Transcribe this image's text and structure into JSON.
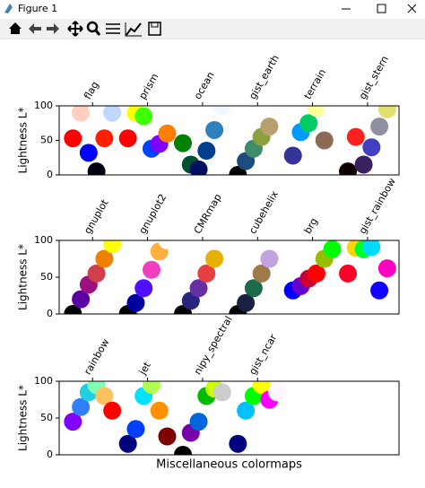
{
  "window": {
    "title": "Figure 1"
  },
  "chart_data": [
    {
      "type": "scatter",
      "ylabel": "Lightness L*",
      "ylim": [
        0,
        100
      ],
      "yticks": [
        0,
        50,
        100
      ],
      "xlim": [
        -0.35,
        8.3
      ],
      "xticks": [
        {
          "value": 0.5,
          "label": "flag"
        },
        {
          "value": 1.9,
          "label": "prism"
        },
        {
          "value": 3.3,
          "label": "ocean"
        },
        {
          "value": 4.7,
          "label": "gist_earth"
        },
        {
          "value": 6.1,
          "label": "terrain"
        },
        {
          "value": 7.5,
          "label": "gist_stern"
        }
      ],
      "series": [
        {
          "x": [
            0,
            0.2,
            0.4,
            0.6,
            0.8,
            1.0
          ],
          "values": [
            53,
            90,
            32,
            5,
            53,
            90
          ],
          "colors": [
            "#ff0000",
            "#ffd0c0",
            "#0000ff",
            "#000010",
            "#ff2000",
            "#c0d8ff"
          ]
        },
        {
          "x": [
            1.4,
            1.6,
            1.8,
            2.0,
            2.2,
            2.4
          ],
          "values": [
            53,
            90,
            85,
            38,
            45,
            60
          ],
          "colors": [
            "#ff0000",
            "#ffff00",
            "#40ff00",
            "#0040ff",
            "#8000ff",
            "#ff8000"
          ]
        },
        {
          "x": [
            2.8,
            3.0,
            3.2,
            3.4,
            3.6,
            3.8
          ],
          "values": [
            46,
            15,
            8,
            35,
            65,
            100
          ],
          "colors": [
            "#007f00",
            "#004f2f",
            "#00105f",
            "#00408f",
            "#3080bf",
            "#f0f8ff"
          ]
        },
        {
          "x": [
            4.2,
            4.4,
            4.6,
            4.8,
            5.0,
            5.2
          ],
          "values": [
            0,
            20,
            38,
            55,
            70,
            100
          ],
          "colors": [
            "#000000",
            "#1c4d7d",
            "#3e8c6a",
            "#8aa23e",
            "#b79f6e",
            "#fdfbfb"
          ]
        },
        {
          "x": [
            5.6,
            5.8,
            6.0,
            6.2,
            6.4,
            6.6
          ],
          "values": [
            28,
            62,
            75,
            97,
            50,
            100
          ],
          "colors": [
            "#333399",
            "#0099ff",
            "#00cc66",
            "#ffff99",
            "#8c6a55",
            "#ffffff"
          ]
        },
        {
          "x": [
            7.0,
            7.2,
            7.4,
            7.6,
            7.8,
            8.0
          ],
          "values": [
            5,
            55,
            15,
            40,
            70,
            95
          ],
          "colors": [
            "#100000",
            "#ff2020",
            "#3a2060",
            "#4040c0",
            "#9090a0",
            "#e0e070"
          ]
        }
      ]
    },
    {
      "type": "scatter",
      "ylabel": "Lightness L*",
      "ylim": [
        0,
        100
      ],
      "yticks": [
        0,
        50,
        100
      ],
      "xlim": [
        -0.35,
        8.3
      ],
      "xticks": [
        {
          "value": 0.5,
          "label": "gnuplot"
        },
        {
          "value": 1.9,
          "label": "gnuplot2"
        },
        {
          "value": 3.3,
          "label": "CMRmap"
        },
        {
          "value": 4.7,
          "label": "cubehelix"
        },
        {
          "value": 6.1,
          "label": "brg"
        },
        {
          "value": 7.5,
          "label": "gist_rainbow"
        }
      ],
      "series": [
        {
          "x": [
            0,
            0.2,
            0.4,
            0.6,
            0.8,
            1.0
          ],
          "values": [
            0,
            20,
            40,
            55,
            75,
            95
          ],
          "colors": [
            "#000000",
            "#5a00a0",
            "#9c1080",
            "#d0404a",
            "#f08000",
            "#ffff00"
          ]
        },
        {
          "x": [
            1.4,
            1.6,
            1.8,
            2.0,
            2.2,
            2.4
          ],
          "values": [
            0,
            15,
            35,
            60,
            85,
            100
          ],
          "colors": [
            "#000000",
            "#0000a0",
            "#5010ff",
            "#f040c0",
            "#ffb040",
            "#ffffff"
          ]
        },
        {
          "x": [
            2.8,
            3.0,
            3.2,
            3.4,
            3.6,
            3.8
          ],
          "values": [
            0,
            18,
            35,
            55,
            75,
            100
          ],
          "colors": [
            "#000000",
            "#262680",
            "#6630a0",
            "#e64040",
            "#e6b000",
            "#ffffff"
          ]
        },
        {
          "x": [
            4.2,
            4.4,
            4.6,
            4.8,
            5.0,
            5.2
          ],
          "values": [
            0,
            15,
            35,
            55,
            75,
            100
          ],
          "colors": [
            "#000000",
            "#1a1f44",
            "#1b6a4a",
            "#a0794b",
            "#c1a3e0",
            "#ffffff"
          ]
        },
        {
          "x": [
            5.6,
            5.8,
            6.0,
            6.2,
            6.4,
            6.6
          ],
          "values": [
            32,
            38,
            48,
            55,
            75,
            88
          ],
          "colors": [
            "#0000ff",
            "#6600cc",
            "#cc0033",
            "#ff0000",
            "#99bb00",
            "#00ff00"
          ]
        },
        {
          "x": [
            7.0,
            7.2,
            7.4,
            7.6,
            7.8,
            8.0
          ],
          "values": [
            55,
            90,
            88,
            91,
            32,
            62
          ],
          "colors": [
            "#ff0029",
            "#ffd400",
            "#00ff29",
            "#00d9ff",
            "#1000ff",
            "#ff00bf"
          ]
        }
      ]
    },
    {
      "type": "scatter",
      "ylabel": "Lightness L*",
      "xlabel": "Miscellaneous colormaps",
      "ylim": [
        0,
        100
      ],
      "yticks": [
        0,
        50,
        100
      ],
      "xlim": [
        -0.35,
        8.3
      ],
      "xticks": [
        {
          "value": 0.5,
          "label": "rainbow"
        },
        {
          "value": 1.9,
          "label": "jet"
        },
        {
          "value": 3.3,
          "label": "nipy_spectral"
        },
        {
          "value": 4.7,
          "label": "gist_ncar"
        }
      ],
      "series": [
        {
          "x": [
            0,
            0.2,
            0.4,
            0.6,
            0.8,
            1.0
          ],
          "values": [
            45,
            65,
            85,
            95,
            80,
            60
          ],
          "colors": [
            "#8000ff",
            "#3080fe",
            "#20d0e0",
            "#80ffb4",
            "#ffc060",
            "#ff0000"
          ]
        },
        {
          "x": [
            1.4,
            1.6,
            1.8,
            2.0,
            2.2,
            2.4
          ],
          "values": [
            15,
            35,
            80,
            95,
            60,
            25
          ],
          "colors": [
            "#00007f",
            "#0040ff",
            "#00e0ff",
            "#b0ff50",
            "#ff9000",
            "#7f0000"
          ]
        },
        {
          "x": [
            2.8,
            3.0,
            3.2,
            3.4,
            3.6,
            3.8
          ],
          "values": [
            0,
            30,
            45,
            80,
            90,
            85
          ],
          "colors": [
            "#000000",
            "#7700aa",
            "#0066dd",
            "#00bb00",
            "#ccff00",
            "#cccccc"
          ]
        },
        {
          "x": [
            4.2,
            4.4,
            4.6,
            4.8,
            5.0,
            5.2
          ],
          "values": [
            15,
            60,
            80,
            95,
            75,
            85
          ],
          "colors": [
            "#000080",
            "#00c0ff",
            "#00ff00",
            "#ffff00",
            "#ff00ff",
            "#fef8fe"
          ]
        }
      ]
    }
  ]
}
